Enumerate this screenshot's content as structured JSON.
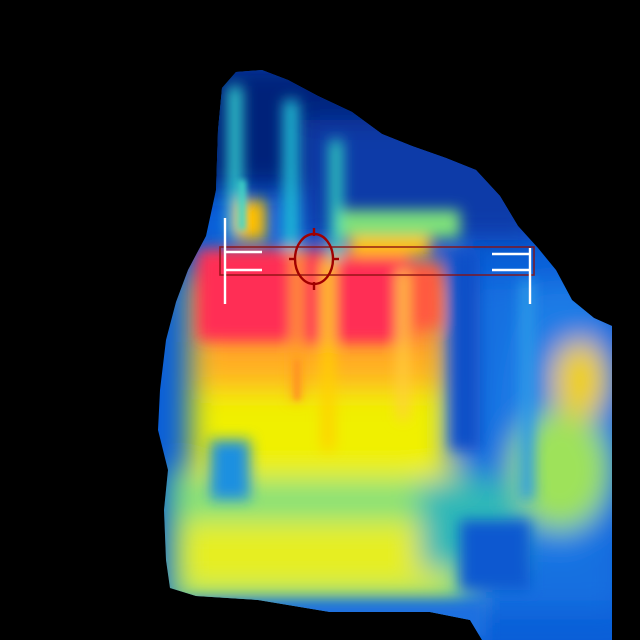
{
  "image": {
    "kind": "thermal-camera-view",
    "palette": [
      "#001a6e",
      "#0a4fd0",
      "#1a8ae8",
      "#2fd0d0",
      "#7ee07a",
      "#f0f000",
      "#ffc000",
      "#ff7a30",
      "#ff2d55"
    ],
    "background_color": "#000000"
  },
  "overlay": {
    "measurement_line_color": "#b01a1a",
    "bracket_color": "#ffffff",
    "crosshair_color": "#a00000"
  }
}
